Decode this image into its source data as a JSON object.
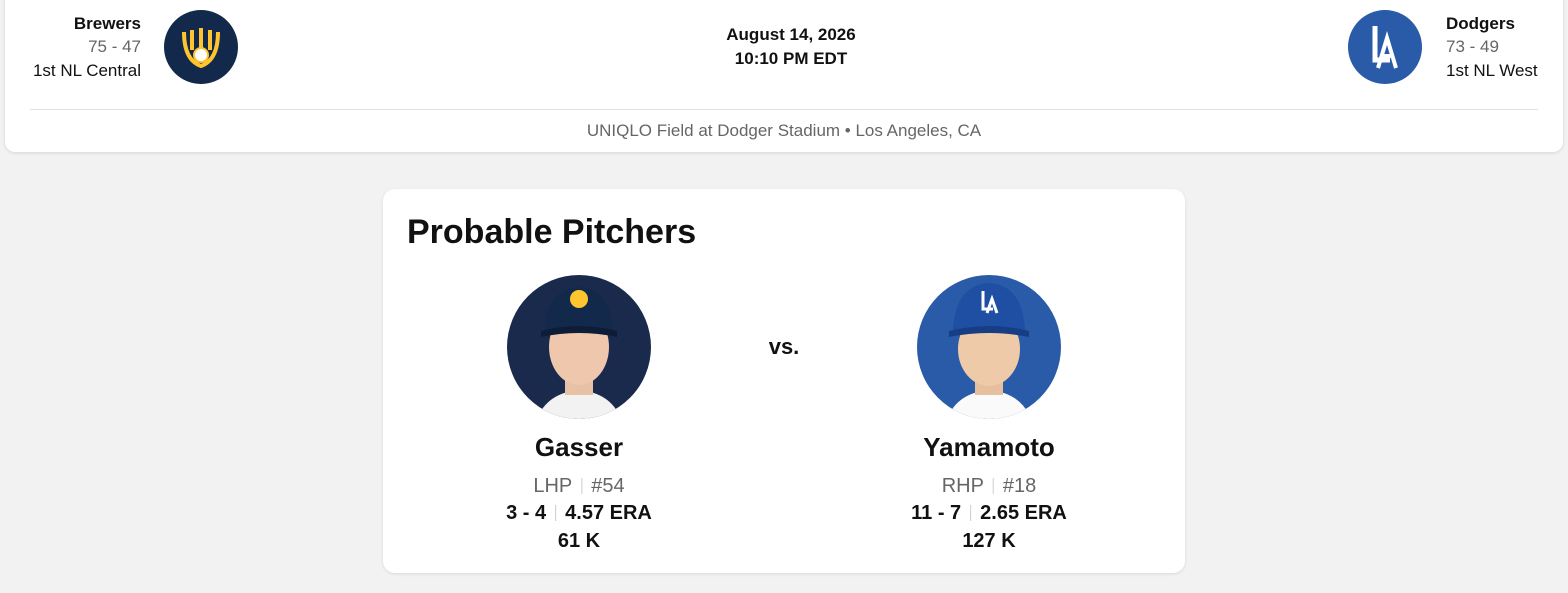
{
  "header": {
    "away": {
      "name": "Brewers",
      "record": "75 - 47",
      "standing": "1st NL Central"
    },
    "date": "August 14, 2026",
    "time": "10:10 PM EDT",
    "home": {
      "name": "Dodgers",
      "record": "73 - 49",
      "standing": "1st NL West"
    },
    "venue": "UNIQLO Field at Dodger Stadium • Los Angeles, CA"
  },
  "pitchers": {
    "title": "Probable Pitchers",
    "vs": "vs.",
    "players": [
      {
        "name": "Gasser",
        "throws": "LHP",
        "number": "#54",
        "record": "3 - 4",
        "era": "4.57 ERA",
        "strikeouts": "61 K"
      },
      {
        "name": "Yamamoto",
        "throws": "RHP",
        "number": "#18",
        "record": "11 - 7",
        "era": "2.65 ERA",
        "strikeouts": "127 K"
      }
    ]
  }
}
